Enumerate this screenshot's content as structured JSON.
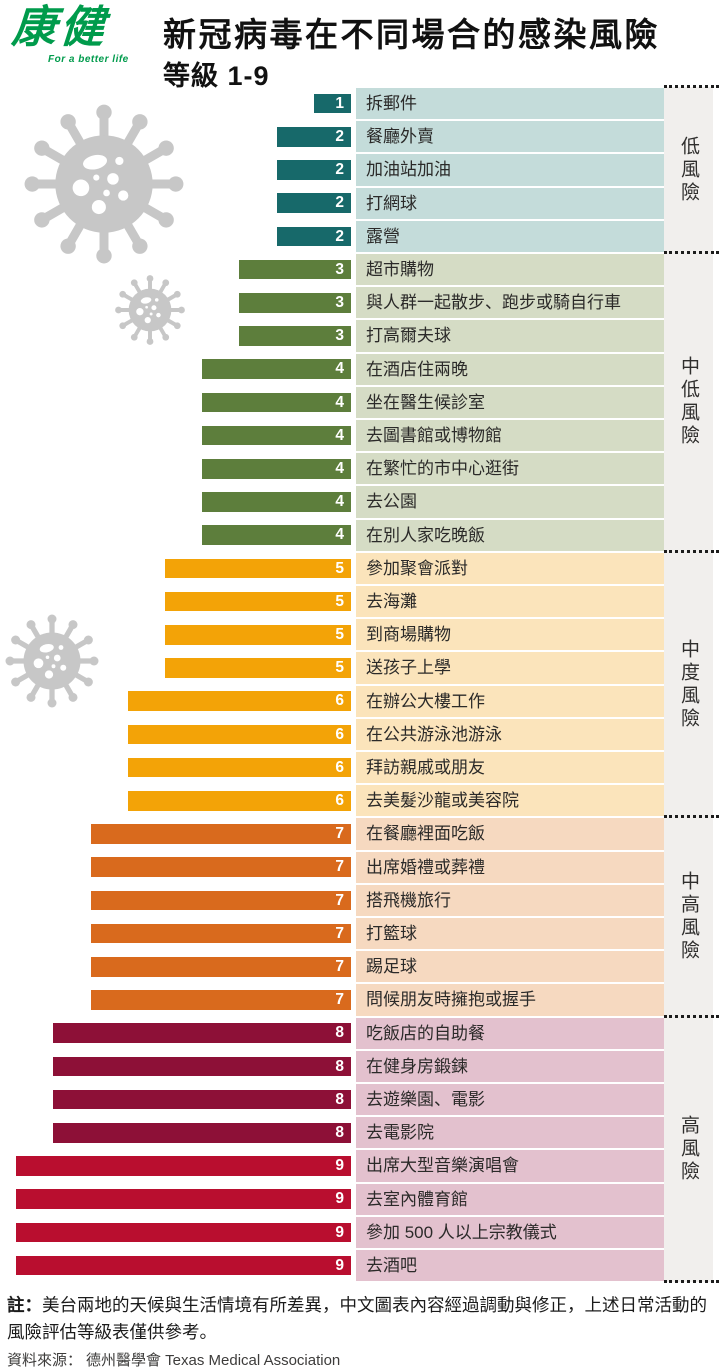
{
  "logo": {
    "name": "康健",
    "tagline": "For a better life",
    "color": "#009b4c"
  },
  "header": {
    "title": "新冠病毒在不同場合的感染風險",
    "subtitle": "等級 1-9"
  },
  "chart_data": {
    "type": "bar",
    "orientation": "horizontal",
    "value_label": "感染風險等級",
    "value_domain": [
      1,
      9
    ],
    "legend_position": "right",
    "level_colors": {
      "1": "#17696a",
      "2": "#17696a",
      "3": "#5d7e3c",
      "4": "#5d7e3c",
      "5": "#f3a307",
      "6": "#f3a307",
      "7": "#d96a1d",
      "8": "#8d1037",
      "9": "#b90e2f"
    },
    "groups": [
      {
        "name": "低風險",
        "bg": "#c4dcda",
        "items": [
          {
            "label": "拆郵件",
            "value": 1
          },
          {
            "label": "餐廳外賣",
            "value": 2
          },
          {
            "label": "加油站加油",
            "value": 2
          },
          {
            "label": "打網球",
            "value": 2
          },
          {
            "label": "露營",
            "value": 2
          }
        ]
      },
      {
        "name": "中低風險",
        "bg": "#d5dcc5",
        "items": [
          {
            "label": "超市購物",
            "value": 3
          },
          {
            "label": "與人群一起散步、跑步或騎自行車",
            "value": 3
          },
          {
            "label": "打高爾夫球",
            "value": 3
          },
          {
            "label": "在酒店住兩晚",
            "value": 4
          },
          {
            "label": "坐在醫生候診室",
            "value": 4
          },
          {
            "label": "去圖書館或博物館",
            "value": 4
          },
          {
            "label": "在繁忙的市中心逛街",
            "value": 4
          },
          {
            "label": "去公園",
            "value": 4
          },
          {
            "label": "在別人家吃晚飯",
            "value": 4
          }
        ]
      },
      {
        "name": "中度風險",
        "bg": "#fbe4bb",
        "items": [
          {
            "label": "參加聚會派對",
            "value": 5
          },
          {
            "label": "去海灘",
            "value": 5
          },
          {
            "label": "到商場購物",
            "value": 5
          },
          {
            "label": "送孩子上學",
            "value": 5
          },
          {
            "label": "在辦公大樓工作",
            "value": 6
          },
          {
            "label": "在公共游泳池游泳",
            "value": 6
          },
          {
            "label": "拜訪親戚或朋友",
            "value": 6
          },
          {
            "label": "去美髮沙龍或美容院",
            "value": 6
          }
        ]
      },
      {
        "name": "中高風險",
        "bg": "#f6d9c0",
        "items": [
          {
            "label": "在餐廳裡面吃飯",
            "value": 7
          },
          {
            "label": "出席婚禮或葬禮",
            "value": 7
          },
          {
            "label": "搭飛機旅行",
            "value": 7
          },
          {
            "label": "打籃球",
            "value": 7
          },
          {
            "label": "踢足球",
            "value": 7
          },
          {
            "label": "問候朋友時擁抱或握手",
            "value": 7
          }
        ]
      },
      {
        "name": "高風險",
        "bg": "#e3c1ce",
        "items": [
          {
            "label": "吃飯店的自助餐",
            "value": 8
          },
          {
            "label": "在健身房鍛鍊",
            "value": 8
          },
          {
            "label": "去遊樂園、電影",
            "value": 8
          },
          {
            "label": "去電影院",
            "value": 8
          },
          {
            "label": "出席大型音樂演唱會",
            "value": 9
          },
          {
            "label": "去室內體育館",
            "value": 9
          },
          {
            "label": "參加 500 人以上宗教儀式",
            "value": 9
          },
          {
            "label": "去酒吧",
            "value": 9
          }
        ]
      }
    ]
  },
  "footer": {
    "note_prefix": "註：",
    "note": "美台兩地的天候與生活情境有所差異，中文圖表內容經過調動與修正，上述日常活動的風險評估等級表僅供參考。",
    "source_label": "資料來源：",
    "source": "德州醫學會 Texas Medical Association"
  }
}
